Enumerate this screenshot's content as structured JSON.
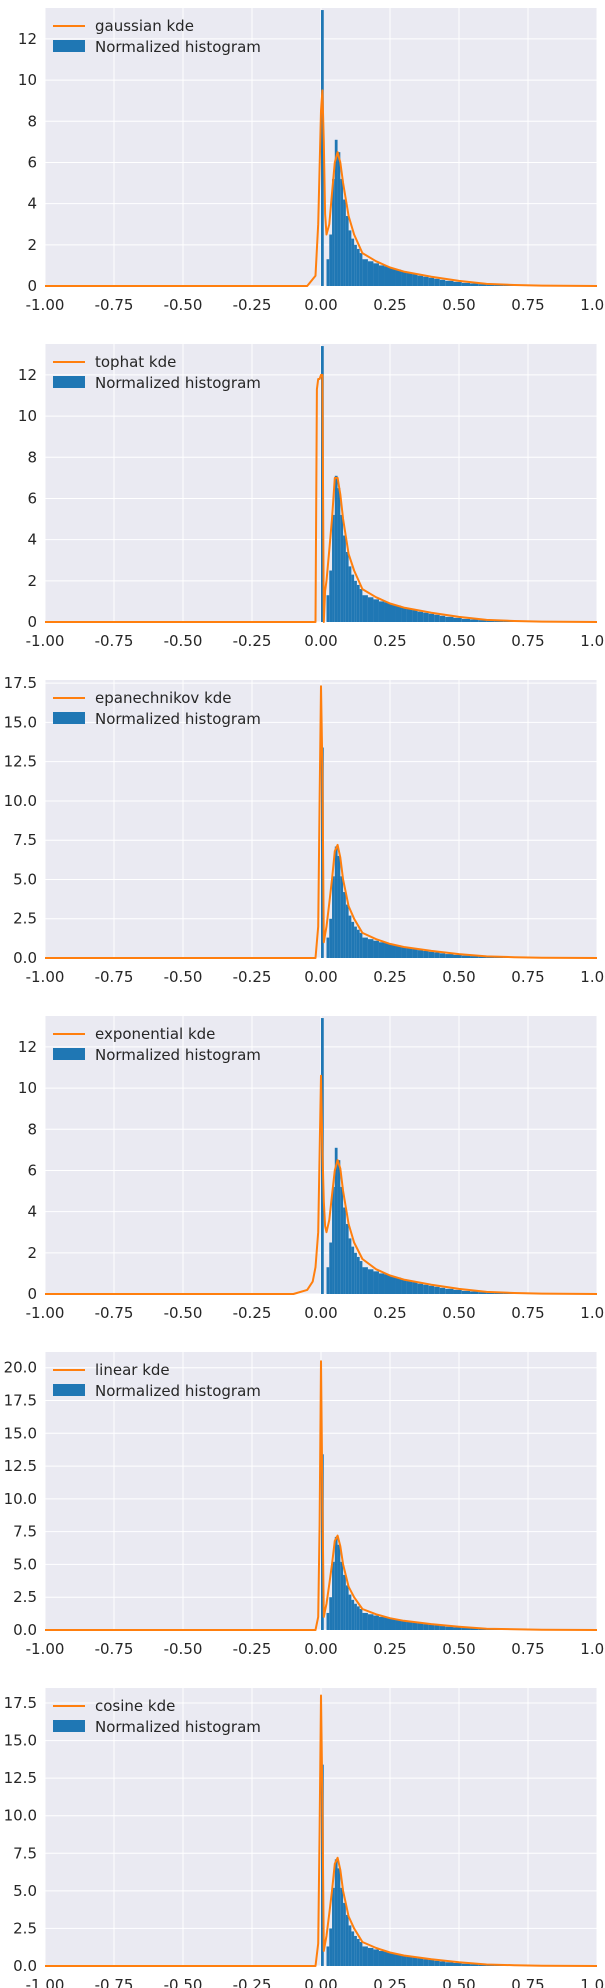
{
  "colors": {
    "background": "#ffffff",
    "axes_face": "#eaeaf2",
    "grid": "#ffffff",
    "histogram": "#1f77b4",
    "kde": "#ff7f0e",
    "text": "#262626"
  },
  "chart_data": [
    {
      "type": "bar",
      "overlay": "line",
      "grid": true,
      "legend_position": "top-left",
      "legend": [
        "gaussian kde",
        "Normalized histogram"
      ],
      "xlim": [
        -1.0,
        1.0
      ],
      "ylim": [
        0,
        13.5
      ],
      "xticks": [
        "-1.00",
        "-0.75",
        "-0.50",
        "-0.25",
        "0.00",
        "0.25",
        "0.50",
        "0.75",
        "1.00"
      ],
      "yticks": [
        "0",
        "2",
        "4",
        "6",
        "8",
        "10",
        "12"
      ],
      "kde_line": {
        "x": [
          -1.0,
          -0.05,
          -0.02,
          -0.01,
          0.0,
          0.005,
          0.01,
          0.015,
          0.02,
          0.03,
          0.04,
          0.05,
          0.06,
          0.07,
          0.08,
          0.1,
          0.12,
          0.15,
          0.2,
          0.25,
          0.3,
          0.4,
          0.5,
          0.6,
          0.7,
          0.8,
          1.0
        ],
        "y": [
          0.0,
          0.0,
          0.5,
          3.0,
          8.5,
          9.5,
          7.0,
          3.5,
          2.5,
          3.0,
          4.5,
          6.0,
          6.5,
          6.0,
          5.0,
          3.4,
          2.5,
          1.6,
          1.2,
          0.9,
          0.7,
          0.45,
          0.25,
          0.1,
          0.05,
          0.02,
          0.0
        ]
      }
    },
    {
      "type": "bar",
      "overlay": "line",
      "grid": true,
      "legend_position": "top-left",
      "legend": [
        "tophat kde",
        "Normalized histogram"
      ],
      "xlim": [
        -1.0,
        1.0
      ],
      "ylim": [
        0,
        13.5
      ],
      "xticks": [
        "-1.00",
        "-0.75",
        "-0.50",
        "-0.25",
        "0.00",
        "0.25",
        "0.50",
        "0.75",
        "1.00"
      ],
      "yticks": [
        "0",
        "2",
        "4",
        "6",
        "8",
        "10",
        "12"
      ],
      "kde_line": {
        "x": [
          -1.0,
          -0.02,
          -0.015,
          -0.01,
          -0.005,
          0.0,
          0.005,
          0.01,
          0.015,
          0.02,
          0.03,
          0.04,
          0.05,
          0.06,
          0.07,
          0.08,
          0.1,
          0.12,
          0.15,
          0.2,
          0.25,
          0.3,
          0.4,
          0.5,
          0.6,
          0.7,
          0.8,
          1.0
        ],
        "y": [
          0.0,
          0.0,
          11.3,
          11.8,
          11.8,
          12.0,
          12.0,
          0.0,
          1.5,
          2.0,
          3.5,
          5.0,
          7.0,
          7.0,
          6.2,
          5.0,
          3.3,
          2.5,
          1.6,
          1.2,
          0.9,
          0.7,
          0.45,
          0.25,
          0.1,
          0.05,
          0.02,
          0.0
        ]
      }
    },
    {
      "type": "bar",
      "overlay": "line",
      "grid": true,
      "legend_position": "top-left",
      "legend": [
        "epanechnikov kde",
        "Normalized histogram"
      ],
      "xlim": [
        -1.0,
        1.0
      ],
      "ylim": [
        0,
        17.7
      ],
      "xticks": [
        "-1.00",
        "-0.75",
        "-0.50",
        "-0.25",
        "0.00",
        "0.25",
        "0.50",
        "0.75",
        "1.00"
      ],
      "yticks": [
        "0.0",
        "2.5",
        "5.0",
        "7.5",
        "10.0",
        "12.5",
        "15.0",
        "17.5"
      ],
      "kde_line": {
        "x": [
          -1.0,
          -0.02,
          -0.01,
          -0.005,
          0.0,
          0.005,
          0.01,
          0.015,
          0.02,
          0.03,
          0.04,
          0.05,
          0.06,
          0.07,
          0.08,
          0.1,
          0.12,
          0.15,
          0.2,
          0.25,
          0.3,
          0.4,
          0.5,
          0.6,
          0.7,
          0.8,
          1.0
        ],
        "y": [
          0.0,
          0.0,
          2.0,
          10.0,
          17.3,
          12.0,
          1.0,
          1.5,
          2.0,
          3.5,
          5.0,
          6.8,
          7.2,
          6.4,
          5.0,
          3.3,
          2.5,
          1.6,
          1.2,
          0.9,
          0.7,
          0.45,
          0.25,
          0.1,
          0.05,
          0.02,
          0.0
        ]
      }
    },
    {
      "type": "bar",
      "overlay": "line",
      "grid": true,
      "legend_position": "top-left",
      "legend": [
        "exponential kde",
        "Normalized histogram"
      ],
      "xlim": [
        -1.0,
        1.0
      ],
      "ylim": [
        0,
        13.5
      ],
      "xticks": [
        "-1.00",
        "-0.75",
        "-0.50",
        "-0.25",
        "0.00",
        "0.25",
        "0.50",
        "0.75",
        "1.00"
      ],
      "yticks": [
        "0",
        "2",
        "4",
        "6",
        "8",
        "10",
        "12"
      ],
      "kde_line": {
        "x": [
          -1.0,
          -0.1,
          -0.05,
          -0.03,
          -0.02,
          -0.01,
          0.0,
          0.005,
          0.01,
          0.015,
          0.02,
          0.03,
          0.04,
          0.05,
          0.06,
          0.07,
          0.08,
          0.1,
          0.12,
          0.15,
          0.2,
          0.25,
          0.3,
          0.4,
          0.5,
          0.6,
          0.7,
          0.8,
          1.0
        ],
        "y": [
          0.0,
          0.0,
          0.2,
          0.6,
          1.3,
          3.0,
          10.6,
          7.0,
          4.5,
          3.3,
          3.0,
          3.6,
          4.8,
          6.0,
          6.5,
          6.1,
          5.0,
          3.4,
          2.5,
          1.7,
          1.2,
          0.9,
          0.7,
          0.45,
          0.25,
          0.1,
          0.05,
          0.02,
          0.0
        ]
      }
    },
    {
      "type": "bar",
      "overlay": "line",
      "grid": true,
      "legend_position": "top-left",
      "legend": [
        "linear kde",
        "Normalized histogram"
      ],
      "xlim": [
        -1.0,
        1.0
      ],
      "ylim": [
        0,
        21.2
      ],
      "xticks": [
        "-1.00",
        "-0.75",
        "-0.50",
        "-0.25",
        "0.00",
        "0.25",
        "0.50",
        "0.75",
        "1.00"
      ],
      "yticks": [
        "0.0",
        "2.5",
        "5.0",
        "7.5",
        "10.0",
        "12.5",
        "15.0",
        "17.5",
        "20.0"
      ],
      "kde_line": {
        "x": [
          -1.0,
          -0.02,
          -0.01,
          -0.005,
          0.0,
          0.005,
          0.01,
          0.015,
          0.02,
          0.03,
          0.04,
          0.05,
          0.06,
          0.07,
          0.08,
          0.1,
          0.12,
          0.15,
          0.2,
          0.25,
          0.3,
          0.4,
          0.5,
          0.6,
          0.7,
          0.8,
          1.0
        ],
        "y": [
          0.0,
          0.0,
          1.0,
          8.0,
          20.5,
          10.0,
          1.0,
          1.5,
          2.0,
          3.5,
          5.0,
          6.8,
          7.2,
          6.4,
          5.0,
          3.3,
          2.5,
          1.6,
          1.2,
          0.9,
          0.7,
          0.45,
          0.25,
          0.1,
          0.05,
          0.02,
          0.0
        ]
      }
    },
    {
      "type": "bar",
      "overlay": "line",
      "grid": true,
      "legend_position": "top-left",
      "legend": [
        "cosine kde",
        "Normalized histogram"
      ],
      "xlim": [
        -1.0,
        1.0
      ],
      "ylim": [
        0,
        18.5
      ],
      "xticks": [
        "-1.00",
        "-0.75",
        "-0.50",
        "-0.25",
        "0.00",
        "0.25",
        "0.50",
        "0.75",
        "1.00"
      ],
      "yticks": [
        "0.0",
        "2.5",
        "5.0",
        "7.5",
        "10.0",
        "12.5",
        "15.0",
        "17.5"
      ],
      "kde_line": {
        "x": [
          -1.0,
          -0.02,
          -0.01,
          -0.005,
          0.0,
          0.005,
          0.01,
          0.015,
          0.02,
          0.03,
          0.04,
          0.05,
          0.06,
          0.07,
          0.08,
          0.1,
          0.12,
          0.15,
          0.2,
          0.25,
          0.3,
          0.4,
          0.5,
          0.6,
          0.7,
          0.8,
          1.0
        ],
        "y": [
          0.0,
          0.0,
          1.5,
          9.0,
          18.0,
          11.0,
          1.0,
          1.5,
          2.0,
          3.5,
          5.0,
          6.8,
          7.2,
          6.4,
          5.0,
          3.3,
          2.5,
          1.6,
          1.2,
          0.9,
          0.7,
          0.45,
          0.25,
          0.1,
          0.05,
          0.02,
          0.0
        ]
      }
    }
  ],
  "histogram": {
    "bin_edges": [
      0.0,
      0.01,
      0.02,
      0.03,
      0.04,
      0.05,
      0.06,
      0.07,
      0.08,
      0.09,
      0.1,
      0.11,
      0.12,
      0.13,
      0.14,
      0.15,
      0.17,
      0.19,
      0.21,
      0.23,
      0.25,
      0.27,
      0.29,
      0.31,
      0.33,
      0.35,
      0.37,
      0.39,
      0.41,
      0.43,
      0.45,
      0.48,
      0.51,
      0.54,
      0.57,
      0.6,
      0.63,
      0.66,
      0.7,
      0.75
    ],
    "values": [
      13.4,
      0.0,
      1.3,
      2.5,
      5.2,
      7.1,
      6.5,
      5.2,
      4.2,
      3.4,
      2.7,
      2.3,
      2.0,
      1.8,
      1.6,
      1.3,
      1.2,
      1.1,
      1.0,
      0.95,
      0.85,
      0.8,
      0.72,
      0.65,
      0.58,
      0.5,
      0.45,
      0.4,
      0.35,
      0.3,
      0.25,
      0.2,
      0.15,
      0.12,
      0.09,
      0.07,
      0.05,
      0.03,
      0.02
    ]
  }
}
